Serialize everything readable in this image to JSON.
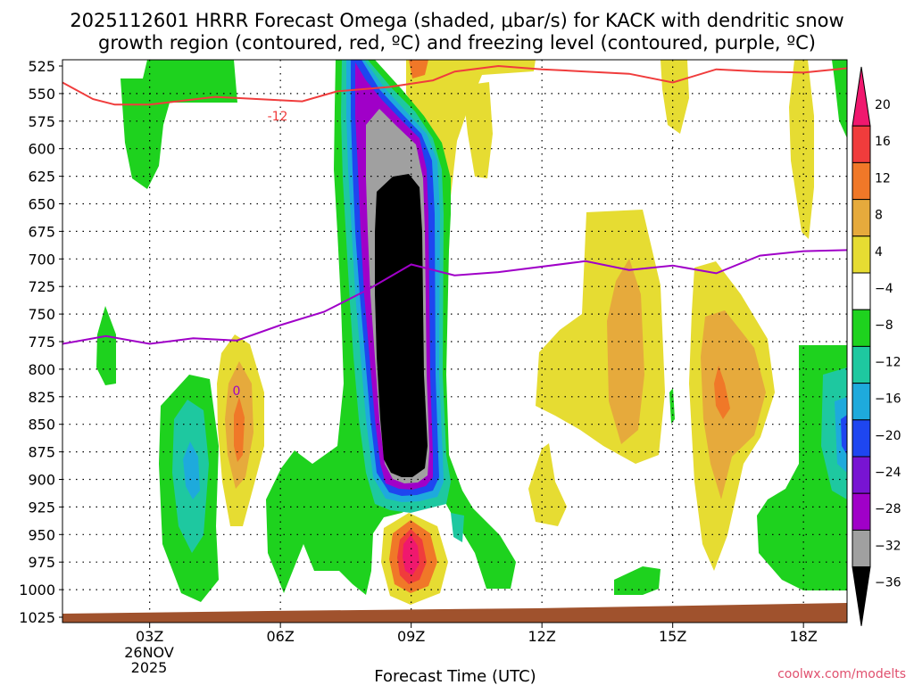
{
  "chart_data": {
    "type": "contour",
    "title_line1": "2025112601 HRRR Forecast Omega (shaded, μbar/s) for KACK with dendritic snow",
    "title_line2": "growth region (contoured, red, ºC) and freezing level (contoured, purple, ºC)",
    "xlabel": "Forecast Time (UTC)",
    "x_ticks": [
      {
        "hour": 3,
        "label": "03Z"
      },
      {
        "hour": 6,
        "label": "06Z"
      },
      {
        "hour": 9,
        "label": "09Z"
      },
      {
        "hour": 12,
        "label": "12Z"
      },
      {
        "hour": 15,
        "label": "15Z"
      },
      {
        "hour": 18,
        "label": "18Z"
      }
    ],
    "x_range_hours": [
      1,
      19
    ],
    "date_label_line1": "26NOV",
    "date_label_line2": "2025",
    "y_levels": [
      525,
      550,
      575,
      600,
      625,
      650,
      675,
      700,
      725,
      750,
      775,
      800,
      825,
      850,
      875,
      900,
      925,
      950,
      975,
      1000,
      1025
    ],
    "y_labels": [
      "525",
      "550",
      "575",
      "600",
      "625",
      "650",
      "675",
      "700",
      "725",
      "750",
      "775",
      "800",
      "825",
      "850",
      "875",
      "900",
      "925",
      "950",
      "975",
      "1000",
      "1025"
    ],
    "colorbar": {
      "labels": [
        "20",
        "16",
        "12",
        "8",
        "4",
        "−4",
        "−8",
        "−12",
        "−16",
        "−20",
        "−24",
        "−28",
        "−32",
        "−36"
      ],
      "colors": [
        "#f0186e",
        "#f03c3c",
        "#f07828",
        "#e6aa3c",
        "#e6dc32",
        "#ffffff",
        "#1ed21e",
        "#1ec8a0",
        "#1eaadc",
        "#1e46f0",
        "#7814d2",
        "#a000c8",
        "#a0a0a0",
        "#000000"
      ]
    },
    "red_contour_label": "-12",
    "purple_contour_label": "0",
    "red_contour_hpa": [
      [
        1.0,
        540
      ],
      [
        1.7,
        555
      ],
      [
        2.2,
        560
      ],
      [
        3.0,
        560
      ],
      [
        4.5,
        553
      ],
      [
        5.5,
        555
      ],
      [
        6.5,
        557
      ],
      [
        7.3,
        548
      ],
      [
        8.5,
        544
      ],
      [
        9.5,
        538
      ],
      [
        10.0,
        530
      ],
      [
        11.0,
        525
      ],
      [
        12.0,
        528
      ],
      [
        13.0,
        530
      ],
      [
        14.0,
        532
      ],
      [
        15.0,
        540
      ],
      [
        16.0,
        528
      ],
      [
        17.0,
        530
      ],
      [
        18.0,
        531
      ],
      [
        19.0,
        527
      ]
    ],
    "purple_contour_hpa": [
      [
        1.0,
        777
      ],
      [
        2.0,
        770
      ],
      [
        3.0,
        777
      ],
      [
        4.0,
        772
      ],
      [
        5.0,
        774
      ],
      [
        6.0,
        760
      ],
      [
        7.0,
        748
      ],
      [
        8.0,
        728
      ],
      [
        9.0,
        705
      ],
      [
        10.0,
        715
      ],
      [
        11.0,
        712
      ],
      [
        13.0,
        702
      ],
      [
        14.0,
        710
      ],
      [
        15.0,
        706
      ],
      [
        16.0,
        713
      ],
      [
        17.0,
        697
      ],
      [
        18.0,
        693
      ],
      [
        19.0,
        692
      ]
    ],
    "source": "coolwx.com/modelts"
  }
}
